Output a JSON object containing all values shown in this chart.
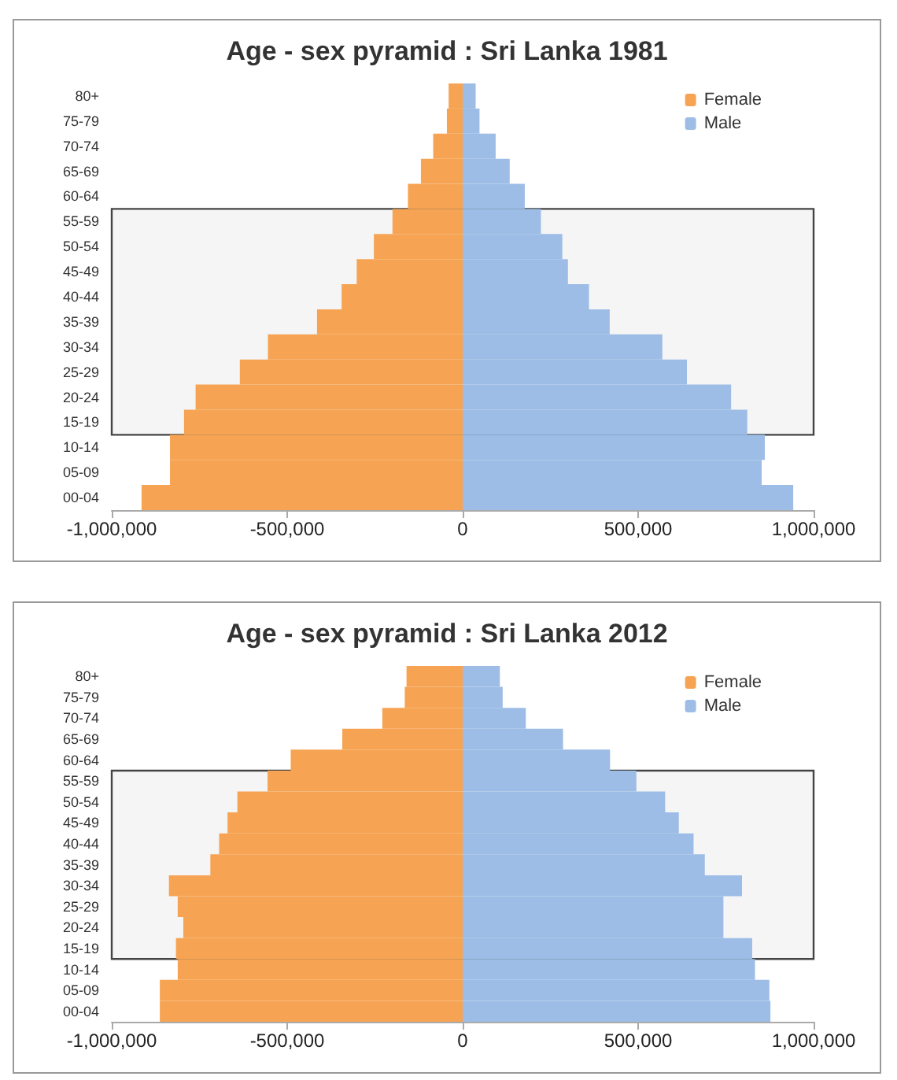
{
  "chart_data": [
    {
      "type": "bar",
      "title": "Age - sex pyramid : Sri Lanka 1981",
      "orientation": "horizontal",
      "stacked": true,
      "legend": "top right",
      "categories": [
        "80+",
        "75-79",
        "70-74",
        "65-69",
        "60-64",
        "55-59",
        "50-54",
        "45-49",
        "40-44",
        "35-39",
        "30-34",
        "25-29",
        "20-24",
        "15-19",
        "10-14",
        "05-09",
        "00-04"
      ],
      "series": [
        {
          "name": "Female",
          "color": "#f6a454",
          "values": [
            -40000,
            -45000,
            -84000,
            -119000,
            -156000,
            -200000,
            -253000,
            -302000,
            -345000,
            -415000,
            -555000,
            -635000,
            -761000,
            -794000,
            -834000,
            -834000,
            -915000
          ]
        },
        {
          "name": "Male",
          "color": "#9dbde6",
          "values": [
            37000,
            48000,
            94000,
            134000,
            177000,
            223000,
            284000,
            300000,
            360000,
            419000,
            569000,
            639000,
            765000,
            811000,
            861000,
            852000,
            942000
          ]
        }
      ],
      "xlim": [
        -1000000,
        1000000
      ],
      "xticks": [
        {
          "value": -1000000,
          "label": "-1,000,000"
        },
        {
          "value": -500000,
          "label": "-500,000"
        },
        0,
        {
          "value": 500000,
          "label": "500,000"
        },
        {
          "value": 1000000,
          "label": "1,000,000"
        }
      ],
      "bands": [
        {
          "axis": "y",
          "from": "55-59",
          "to": "15-19"
        }
      ]
    },
    {
      "type": "bar",
      "title": "Age - sex pyramid : Sri Lanka 2012",
      "orientation": "horizontal",
      "stacked": true,
      "legend": "top right",
      "categories": [
        "80+",
        "75-79",
        "70-74",
        "65-69",
        "60-64",
        "55-59",
        "50-54",
        "45-49",
        "40-44",
        "35-39",
        "30-34",
        "25-29",
        "20-24",
        "15-19",
        "10-14",
        "05-09",
        "00-04"
      ],
      "series": [
        {
          "name": "Female",
          "color": "#f6a454",
          "values": [
            -160000,
            -165000,
            -229000,
            -343000,
            -490000,
            -556000,
            -642000,
            -670000,
            -694000,
            -719000,
            -837000,
            -812000,
            -796000,
            -817000,
            -812000,
            -863000,
            -863000
          ]
        },
        {
          "name": "Male",
          "color": "#9dbde6",
          "values": [
            106000,
            114000,
            180000,
            286000,
            420000,
            495000,
            577000,
            616000,
            658000,
            690000,
            796000,
            743000,
            743000,
            825000,
            833000,
            874000,
            877000
          ]
        }
      ],
      "xlim": [
        -1000000,
        1000000
      ],
      "xticks": [
        {
          "value": -1000000,
          "label": "-1,000,000"
        },
        {
          "value": -500000,
          "label": "-500,000"
        },
        0,
        {
          "value": 500000,
          "label": "500,000"
        },
        {
          "value": 1000000,
          "label": "1,000,000"
        }
      ],
      "bands": [
        {
          "axis": "y",
          "from": "55-59",
          "to": "15-19"
        }
      ]
    }
  ]
}
